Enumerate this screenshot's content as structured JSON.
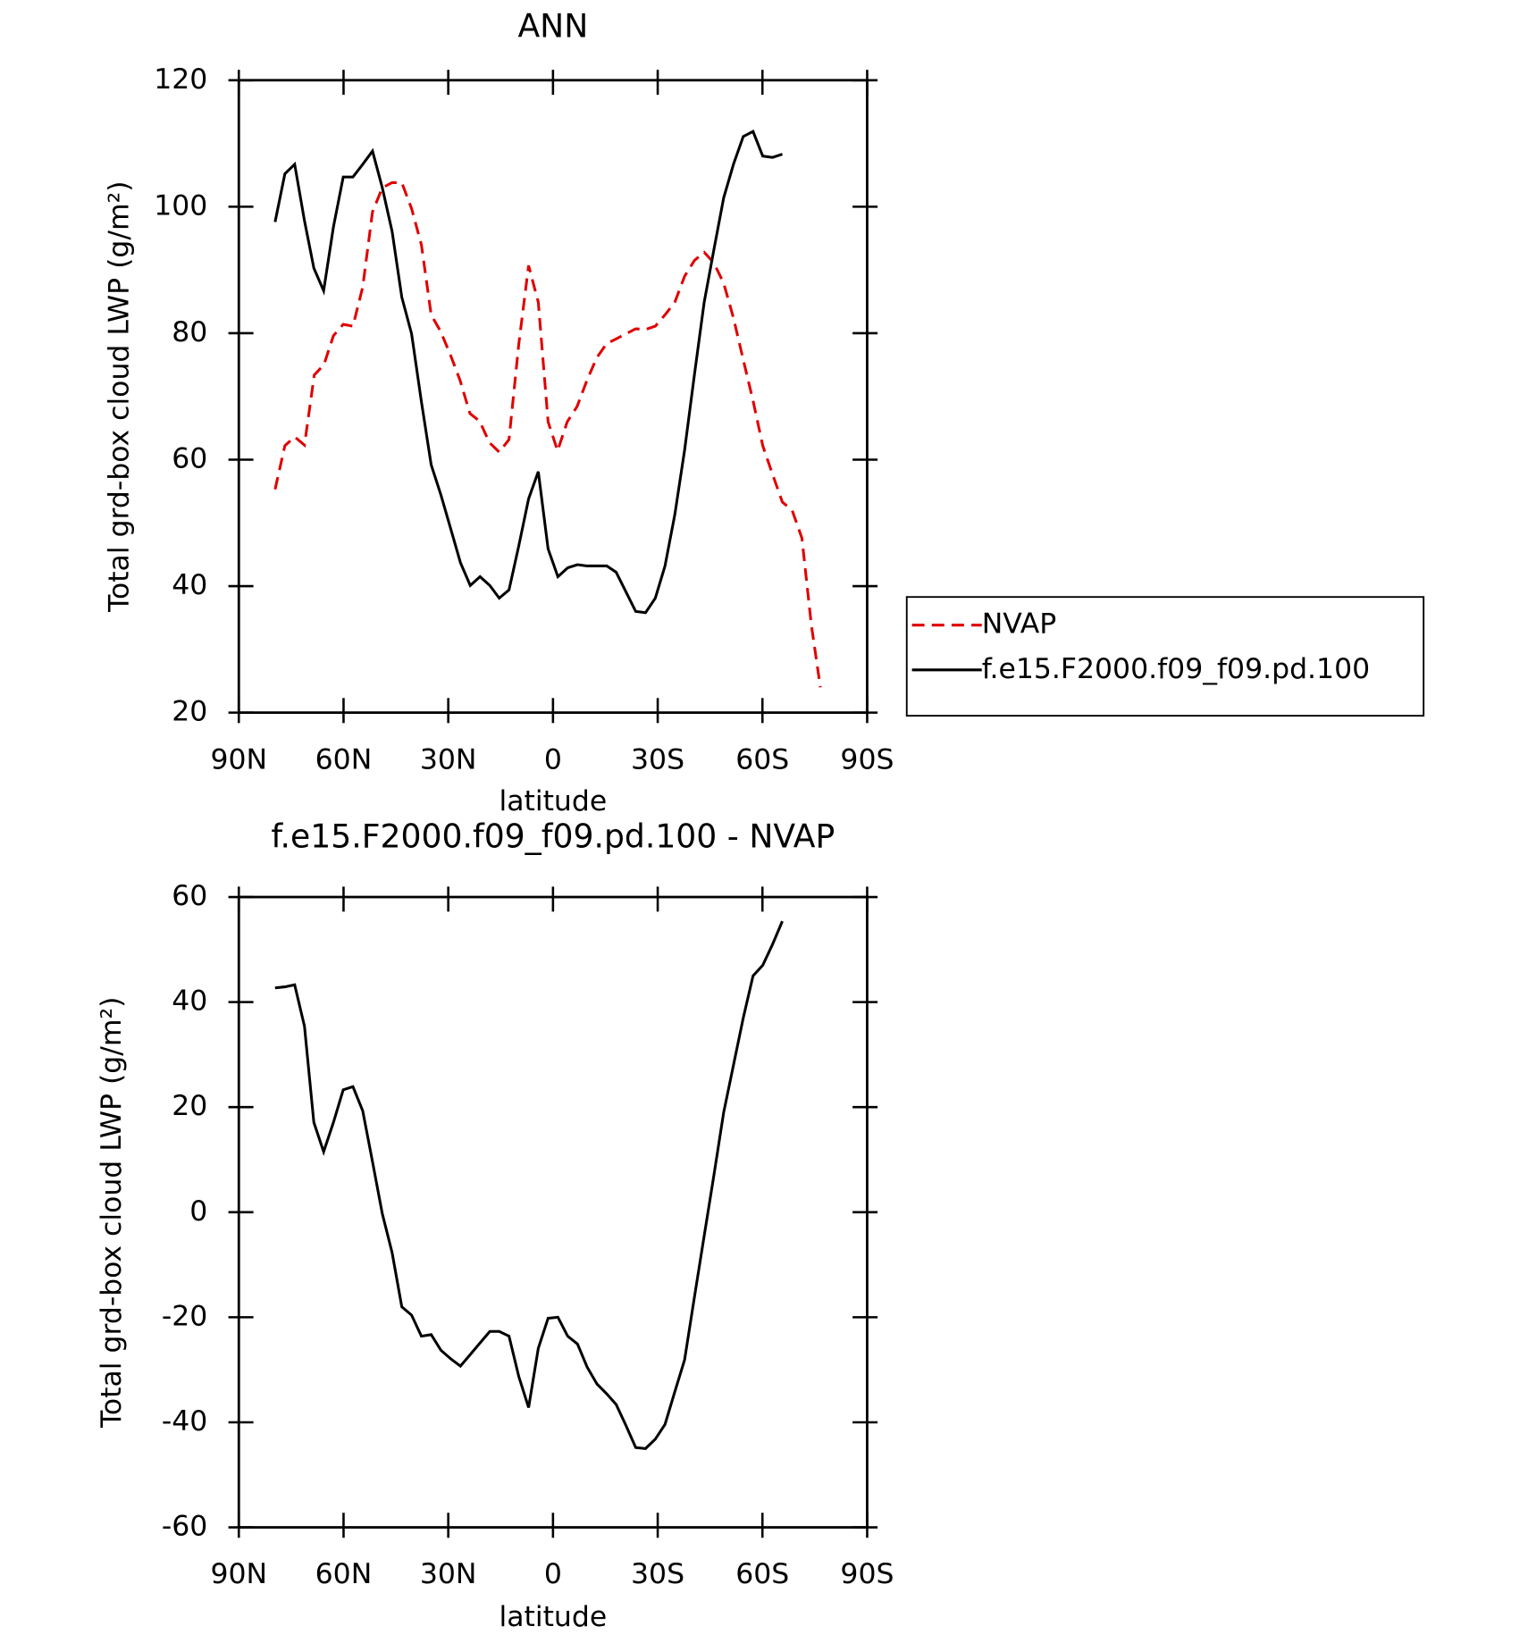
{
  "chart_data": [
    {
      "type": "line",
      "title": "ANN",
      "xlabel": "latitude",
      "ylabel": "Total grd-box cloud LWP (g/m²)",
      "xlim": [
        90,
        -90
      ],
      "xticks": [
        {
          "value": 90,
          "label": "90N"
        },
        {
          "value": 60,
          "label": "60N"
        },
        {
          "value": 30,
          "label": "30N"
        },
        0,
        {
          "value": -30,
          "label": "30S"
        },
        {
          "value": -60,
          "label": "60S"
        },
        {
          "value": -90,
          "label": "90S"
        }
      ],
      "ylim": [
        20,
        120
      ],
      "yticks": [
        20,
        40,
        60,
        80,
        100,
        120
      ],
      "legend": "right",
      "series": [
        {
          "name": "NVAP",
          "color": "#e00000",
          "dashed": true,
          "x": [
            79.6,
            76.8,
            74.0,
            71.2,
            68.4,
            65.6,
            62.9,
            60.1,
            57.3,
            54.5,
            51.7,
            48.9,
            46.1,
            43.3,
            40.5,
            37.7,
            34.9,
            32.2,
            29.4,
            26.6,
            23.8,
            21.0,
            18.2,
            15.4,
            12.6,
            9.8,
            7.0,
            4.2,
            1.4,
            -1.3,
            -4.1,
            -6.9,
            -9.7,
            -12.5,
            -15.3,
            -18.1,
            -20.9,
            -23.7,
            -26.5,
            -29.3,
            -32.1,
            -34.9,
            -37.7,
            -40.5,
            -43.3,
            -46.1,
            -48.9,
            -51.7,
            -54.5,
            -57.3,
            -60.1,
            -62.9,
            -65.7,
            -68.5,
            -71.3,
            -74.0,
            -76.6
          ],
          "values": [
            55.3,
            62.2,
            63.6,
            62.3,
            73.4,
            75.0,
            79.6,
            81.4,
            81.1,
            87.3,
            99.2,
            103.0,
            103.8,
            103.8,
            99.7,
            94.0,
            82.9,
            80.3,
            76.6,
            72.5,
            67.3,
            66.1,
            62.7,
            61.2,
            63.2,
            78.3,
            90.7,
            84.9,
            66.0,
            61.4,
            66.0,
            68.4,
            72.5,
            76.1,
            78.3,
            79.1,
            79.9,
            80.7,
            80.6,
            81.1,
            82.9,
            84.9,
            89.0,
            91.5,
            92.8,
            91.1,
            87.9,
            82.4,
            75.8,
            69.3,
            62.2,
            57.7,
            53.3,
            52.0,
            47.6,
            33.9,
            24.0
          ]
        },
        {
          "name": "f.e15.F2000.f09_f09.pd.100",
          "color": "#000000",
          "dashed": false,
          "x": [
            79.6,
            76.8,
            74.0,
            71.2,
            68.5,
            65.7,
            62.9,
            60.1,
            57.3,
            54.5,
            51.7,
            48.9,
            46.1,
            43.3,
            40.5,
            37.7,
            34.9,
            32.1,
            29.3,
            26.5,
            23.7,
            20.9,
            18.1,
            15.4,
            12.6,
            9.8,
            7.0,
            4.2,
            1.4,
            -1.4,
            -4.2,
            -7.0,
            -9.8,
            -12.6,
            -15.4,
            -18.1,
            -20.9,
            -23.7,
            -26.5,
            -29.3,
            -32.1,
            -34.9,
            -37.7,
            -40.5,
            -43.3,
            -46.1,
            -48.9,
            -51.7,
            -54.5,
            -57.3,
            -60.1,
            -62.9,
            -65.7
          ],
          "values": [
            97.6,
            105.2,
            106.7,
            97.8,
            90.3,
            86.7,
            96.8,
            104.7,
            104.7,
            106.7,
            108.8,
            103.0,
            96.1,
            85.7,
            79.9,
            69.2,
            59.2,
            54.4,
            49.1,
            43.7,
            40.1,
            41.5,
            40.1,
            38.1,
            39.4,
            46.4,
            53.8,
            58.1,
            45.9,
            41.5,
            42.9,
            43.4,
            43.2,
            43.2,
            43.2,
            42.2,
            39.1,
            36.0,
            35.8,
            38.1,
            43.2,
            51.3,
            61.5,
            73.4,
            84.9,
            93.2,
            101.4,
            106.7,
            111.1,
            111.9,
            108.0,
            107.8,
            108.3
          ]
        }
      ]
    },
    {
      "type": "line",
      "title": "f.e15.F2000.f09_f09.pd.100 - NVAP",
      "xlabel": "latitude",
      "ylabel": "Total grd-box cloud LWP (g/m²)",
      "xlim": [
        90,
        -90
      ],
      "xticks": [
        {
          "value": 90,
          "label": "90N"
        },
        {
          "value": 60,
          "label": "60N"
        },
        {
          "value": 30,
          "label": "30N"
        },
        0,
        {
          "value": -30,
          "label": "30S"
        },
        {
          "value": -60,
          "label": "60S"
        },
        {
          "value": -90,
          "label": "90S"
        }
      ],
      "ylim": [
        -60,
        60
      ],
      "yticks": [
        -60,
        -40,
        -20,
        0,
        20,
        40,
        60
      ],
      "color": "#000000",
      "x": [
        79.6,
        76.8,
        74.0,
        71.2,
        68.5,
        65.7,
        62.9,
        60.1,
        57.3,
        54.5,
        51.7,
        48.9,
        46.1,
        43.3,
        40.5,
        37.7,
        34.9,
        32.1,
        29.3,
        26.5,
        23.7,
        20.9,
        18.1,
        15.4,
        12.6,
        9.8,
        7.0,
        4.2,
        1.4,
        -1.4,
        -4.2,
        -7.0,
        -9.8,
        -12.6,
        -15.4,
        -18.1,
        -20.9,
        -23.7,
        -26.5,
        -29.3,
        -32.1,
        -34.9,
        -37.7,
        -40.5,
        -43.3,
        -46.1,
        -48.9,
        -51.7,
        -54.5,
        -57.3,
        -60.1,
        -62.9,
        -65.7
      ],
      "values": [
        42.7,
        42.9,
        43.3,
        35.4,
        17.1,
        11.5,
        17.1,
        23.3,
        23.9,
        19.3,
        9.6,
        -0.3,
        -7.7,
        -18.0,
        -19.6,
        -23.6,
        -23.3,
        -26.3,
        -27.9,
        -29.3,
        -27.1,
        -24.9,
        -22.7,
        -22.7,
        -23.6,
        -31.3,
        -37.2,
        -25.9,
        -20.2,
        -20.0,
        -23.6,
        -25.1,
        -29.5,
        -32.7,
        -34.6,
        -36.6,
        -40.6,
        -44.8,
        -45.0,
        -43.2,
        -40.4,
        -34.2,
        -28.1,
        -16.2,
        -4.5,
        7.0,
        19.0,
        28.0,
        37.0,
        45.0,
        47.0,
        51.0,
        55.4
      ]
    }
  ]
}
